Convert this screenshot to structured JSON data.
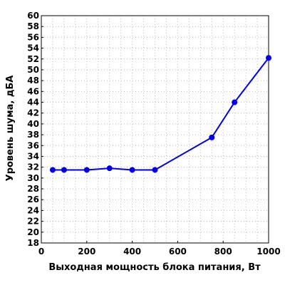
{
  "chart_data": {
    "type": "line",
    "title": "",
    "xlabel": "Выходная мощность блока питания, Вт",
    "ylabel": "Уровень шума, дБА",
    "xlim": [
      0,
      1000
    ],
    "ylim": [
      18,
      60
    ],
    "x_ticks": [
      0,
      200,
      400,
      600,
      800,
      1000
    ],
    "y_ticks": [
      18,
      20,
      22,
      24,
      26,
      28,
      30,
      32,
      34,
      36,
      38,
      40,
      42,
      44,
      46,
      48,
      50,
      52,
      54,
      56,
      58,
      60
    ],
    "grid": true,
    "color": "#0000ee",
    "series": [
      {
        "x": [
          50,
          100,
          200,
          300,
          400,
          500,
          750,
          850,
          1000
        ],
        "y": [
          31.5,
          31.5,
          31.5,
          31.8,
          31.5,
          31.5,
          37.5,
          44.0,
          52.2
        ]
      }
    ]
  }
}
